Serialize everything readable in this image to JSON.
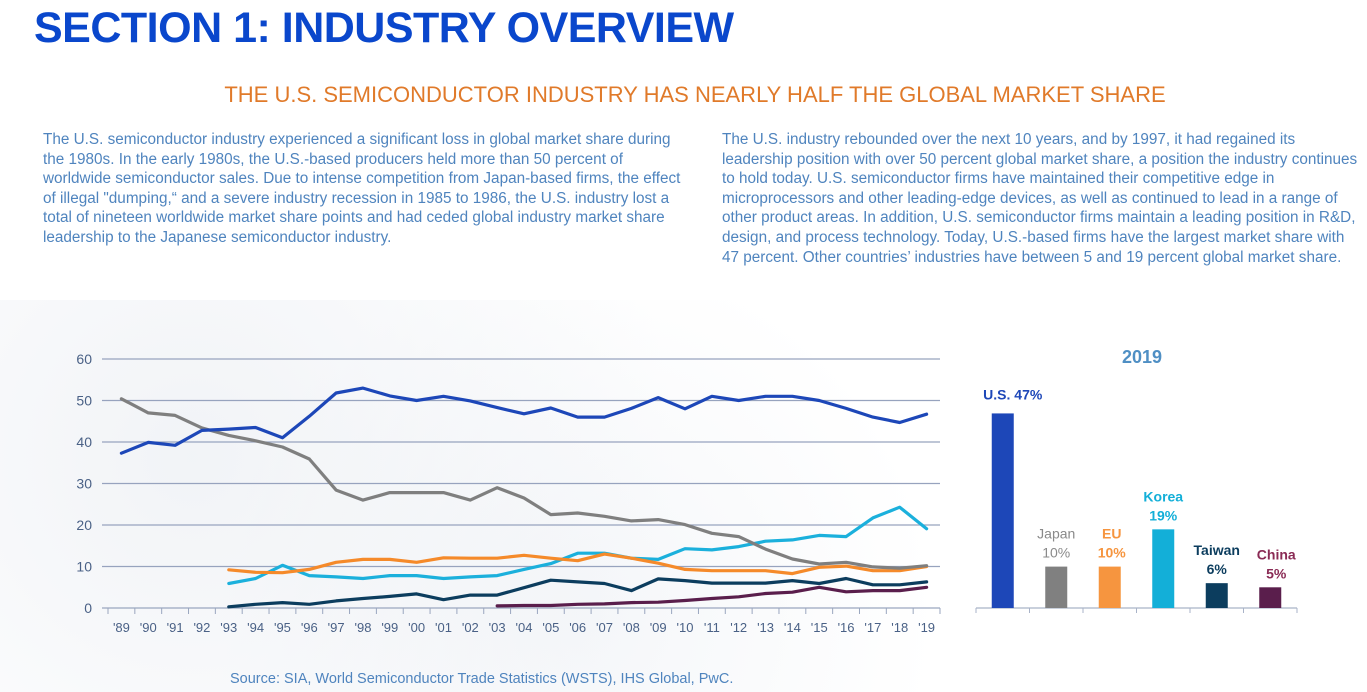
{
  "header": {
    "section_title": "SECTION 1: INDUSTRY OVERVIEW",
    "subtitle": "THE U.S. SEMICONDUCTOR INDUSTRY HAS NEARLY HALF THE GLOBAL MARKET SHARE"
  },
  "body": {
    "left_paragraph": "The U.S. semiconductor industry experienced a significant loss in global market share during the 1980s. In the early 1980s, the U.S.-based producers held more than 50 percent of worldwide semiconductor sales. Due to intense competition from Japan-based firms, the effect of illegal \"dumping,“ and a severe industry recession in 1985 to 1986, the U.S. industry lost a total of nineteen worldwide market share points and had ceded global industry market share leadership to the Japanese semiconductor industry.",
    "right_paragraph": "The U.S. industry rebounded over the next 10 years, and by 1997, it had regained its leadership position with over 50 percent global market share, a position the industry continues to hold today. U.S. semiconductor firms have maintained their competitive edge in microprocessors and other leading-edge devices, as well as continued to lead in a range of other product areas. In addition, U.S. semiconductor firms maintain a leading position in R&D, design, and process technology. Today, U.S.-based firms have the largest market share with 47 percent. Other countries’ industries have between 5 and 19 percent global market share."
  },
  "footer": {
    "source": "Source: SIA, World Semiconductor Trade Statistics (WSTS), IHS Global, PwC."
  },
  "chart_data": [
    {
      "type": "line",
      "title": "",
      "xlabel": "",
      "ylabel": "",
      "ylim": [
        0,
        60
      ],
      "yticks": [
        "0",
        "10",
        "20",
        "30",
        "40",
        "50",
        "60"
      ],
      "grid": true,
      "legend": "none",
      "categories": [
        "'89",
        "'90",
        "'91",
        "'92",
        "'93",
        "'94",
        "'95",
        "'96",
        "'97",
        "'98",
        "'99",
        "'00",
        "'01",
        "'02",
        "'03",
        "'04",
        "'05",
        "'06",
        "'07",
        "'08",
        "'09",
        "'10",
        "'11",
        "'12",
        "'13",
        "'14",
        "'15",
        "'16",
        "'17",
        "'18",
        "'19"
      ],
      "series": [
        {
          "name": "U.S.",
          "color": "#1d47b8",
          "values": [
            37.3,
            39.9,
            39.2,
            42.8,
            43.1,
            43.5,
            41.0,
            46.2,
            51.8,
            53.0,
            51.1,
            50.0,
            51.0,
            49.9,
            48.3,
            46.8,
            48.2,
            46.0,
            46.0,
            48.1,
            50.7,
            48.0,
            51.0,
            50.0,
            51.0,
            51.0,
            50.0,
            48.1,
            46.0,
            44.7,
            46.7
          ]
        },
        {
          "name": "Japan",
          "color": "#7f7f7f",
          "values": [
            50.4,
            47.0,
            46.4,
            43.4,
            41.6,
            40.3,
            38.8,
            35.9,
            28.4,
            26.0,
            27.8,
            27.8,
            27.8,
            26.0,
            29.0,
            26.5,
            22.5,
            22.9,
            22.1,
            21.0,
            21.3,
            20.1,
            18.0,
            17.2,
            14.2,
            11.8,
            10.6,
            11.0,
            9.9,
            9.6,
            10.2
          ]
        },
        {
          "name": "EU",
          "color": "#f58a2a",
          "values": [
            null,
            null,
            null,
            null,
            9.2,
            8.6,
            8.5,
            9.3,
            11.0,
            11.7,
            11.7,
            11.0,
            12.1,
            12.0,
            12.0,
            12.7,
            12.0,
            11.4,
            13.0,
            12.0,
            10.8,
            9.3,
            9.0,
            9.0,
            9.0,
            8.3,
            9.8,
            10.1,
            9.0,
            9.0,
            10.0
          ]
        },
        {
          "name": "Korea",
          "color": "#1bb0dc",
          "values": [
            null,
            null,
            null,
            null,
            5.9,
            7.1,
            10.3,
            7.8,
            7.5,
            7.1,
            7.8,
            7.8,
            7.1,
            7.5,
            7.8,
            9.3,
            10.7,
            13.2,
            13.2,
            12.0,
            11.7,
            14.3,
            14.0,
            14.8,
            16.1,
            16.4,
            17.5,
            17.2,
            21.7,
            24.3,
            19.1
          ]
        },
        {
          "name": "Taiwan",
          "color": "#0c3d5e",
          "values": [
            null,
            null,
            null,
            null,
            0.3,
            0.9,
            1.3,
            0.9,
            1.7,
            2.3,
            2.8,
            3.4,
            2.0,
            3.1,
            3.1,
            4.9,
            6.7,
            6.3,
            5.9,
            4.2,
            7.0,
            6.6,
            6.0,
            6.0,
            6.0,
            6.6,
            5.9,
            7.1,
            5.6,
            5.6,
            6.3
          ]
        },
        {
          "name": "China",
          "color": "#5a1e4c",
          "values": [
            null,
            null,
            null,
            null,
            null,
            null,
            null,
            null,
            null,
            null,
            null,
            null,
            null,
            null,
            0.5,
            0.6,
            0.6,
            0.9,
            1.0,
            1.3,
            1.4,
            1.8,
            2.3,
            2.7,
            3.5,
            3.8,
            5.0,
            3.9,
            4.2,
            4.2,
            5.0
          ]
        }
      ]
    },
    {
      "type": "bar",
      "title": "2019",
      "categories": [
        "U.S.",
        "Japan",
        "EU",
        "Korea",
        "Taiwan",
        "China"
      ],
      "values": [
        47,
        10,
        10,
        19,
        6,
        5
      ],
      "labels": [
        {
          "name": "U.S.",
          "pct": "47%",
          "inline": true
        },
        {
          "name": "Japan",
          "pct": "10%",
          "inline": false
        },
        {
          "name": "EU",
          "pct": "10%",
          "inline": false
        },
        {
          "name": "Korea",
          "pct": "19%",
          "inline": false
        },
        {
          "name": "Taiwan",
          "pct": "6%",
          "inline": false
        },
        {
          "name": "China",
          "pct": "5%",
          "inline": false
        }
      ],
      "colors": [
        "#1d47b8",
        "#808080",
        "#f6953f",
        "#13afd8",
        "#0c3d5e",
        "#5a1e4c"
      ],
      "label_colors": [
        "#1d47b8",
        "#8a8a8a",
        "#f6953f",
        "#13afd8",
        "#0c3d5e",
        "#8a2b55"
      ],
      "title_color": "#4f8fc4",
      "ylim": [
        0,
        50
      ]
    }
  ]
}
